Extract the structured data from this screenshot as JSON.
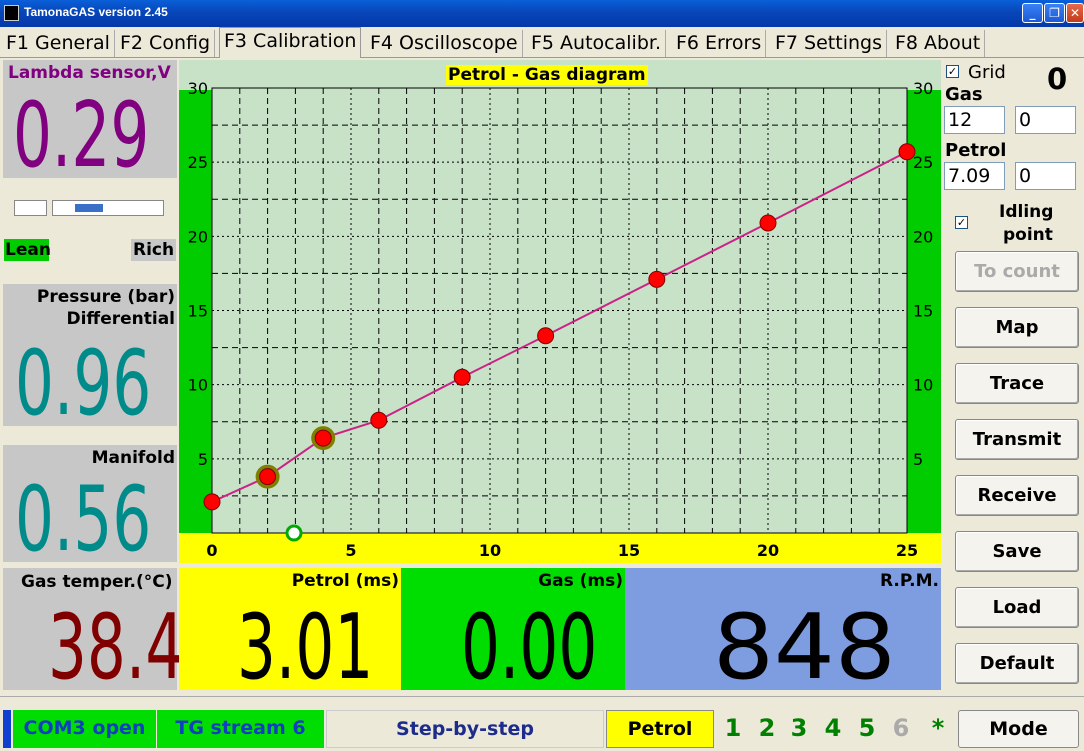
{
  "window": {
    "title": "TamonaGAS  version 2.45"
  },
  "tabs": [
    "F1 General",
    "F2 Config",
    "F3 Calibration",
    "F4 Oscilloscope",
    "F5 Autocalibr.",
    "F6 Errors",
    "F7 Settings",
    "F8 About"
  ],
  "active_tab": "F3 Calibration",
  "left": {
    "lambda_label": "Lambda sensor,V",
    "lambda_value": "0.29",
    "lean": "Lean",
    "rich": "Rich",
    "pressure_label": "Pressure (bar)",
    "differential_label": "Differential",
    "differential_value": "0.96",
    "manifold_label": "Manifold",
    "manifold_value": "0.56",
    "gas_temp_label": "Gas temper.(°C)",
    "gas_temp_value": "38.4"
  },
  "bottom": {
    "petrol_label": "Petrol (ms)",
    "petrol_value": "3.01",
    "gas_label": "Gas (ms)",
    "gas_value": "0.00",
    "rpm_label": "R.P.M.",
    "rpm_value": "848"
  },
  "chart_data": {
    "type": "line",
    "title": "Petrol - Gas diagram",
    "x": [
      0,
      2,
      4,
      6,
      9,
      12,
      16,
      20,
      25
    ],
    "y": [
      2.1,
      3.8,
      6.4,
      7.6,
      10.5,
      13.3,
      17.1,
      20.9,
      25.7
    ],
    "highlighted_points": [
      2,
      4
    ],
    "xlim": [
      0,
      25
    ],
    "ylim": [
      0,
      30
    ],
    "x_ticks": [
      "0",
      "5",
      "10",
      "15",
      "20",
      "25"
    ],
    "y_ticks": [
      "5",
      "10",
      "15",
      "20",
      "25",
      "30"
    ],
    "grid": true,
    "line_color": "#cc2288",
    "point_color": "#ff0000"
  },
  "right": {
    "grid_label": "Grid",
    "grid_checked": true,
    "counter": "0",
    "gas_label": "Gas",
    "gas_field1": "12",
    "gas_field2": "0",
    "petrol_label": "Petrol",
    "petrol_field1": "7.09",
    "petrol_field2": "0",
    "idling_label1": "Idling",
    "idling_label2": "point",
    "idling_checked": true,
    "buttons": {
      "to_count": "To count",
      "map": "Map",
      "trace": "Trace",
      "transmit": "Transmit",
      "receive": "Receive",
      "save": "Save",
      "load": "Load",
      "default": "Default"
    }
  },
  "statusbar": {
    "com": "COM3 open",
    "stream": "TG stream 6",
    "mode_text": "Step-by-step",
    "fuel": "Petrol",
    "n1": "1",
    "n2": "2",
    "n3": "3",
    "n4": "4",
    "n5": "5",
    "n6": "6",
    "star": "*",
    "mode_button": "Mode"
  }
}
